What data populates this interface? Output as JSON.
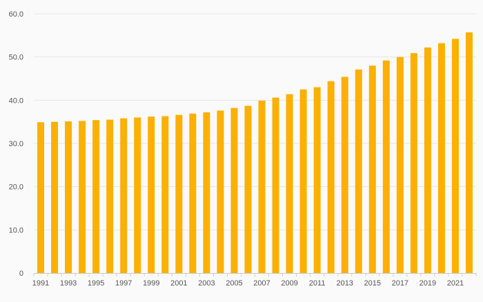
{
  "chart_data": {
    "type": "bar",
    "title": "",
    "xlabel": "",
    "ylabel": "",
    "ylim": [
      0,
      60
    ],
    "y_ticks": [
      0,
      10,
      20,
      30,
      40,
      50,
      60
    ],
    "y_tick_labels": [
      "0",
      "10.0",
      "20.0",
      "30.0",
      "40.0",
      "50.0",
      "60.0"
    ],
    "x_tick_labels": [
      "1991",
      "1993",
      "1995",
      "1997",
      "1999",
      "2001",
      "2003",
      "2005",
      "2007",
      "2009",
      "2011",
      "2013",
      "2015",
      "2017",
      "2019",
      "2021"
    ],
    "grid": true,
    "legend": "none",
    "categories": [
      "1991",
      "1992",
      "1993",
      "1994",
      "1995",
      "1996",
      "1997",
      "1998",
      "1999",
      "2000",
      "2001",
      "2002",
      "2003",
      "2004",
      "2005",
      "2006",
      "2007",
      "2008",
      "2009",
      "2010",
      "2011",
      "2012",
      "2013",
      "2014",
      "2015",
      "2016",
      "2017",
      "2018",
      "2019",
      "2020",
      "2021",
      "2022"
    ],
    "values": [
      34.9,
      35.0,
      35.1,
      35.2,
      35.4,
      35.5,
      35.8,
      36.0,
      36.2,
      36.3,
      36.6,
      36.9,
      37.2,
      37.6,
      38.2,
      38.7,
      39.9,
      40.6,
      41.4,
      42.5,
      43.0,
      44.4,
      45.4,
      47.1,
      48.0,
      49.2,
      50.0,
      50.9,
      52.2,
      53.2,
      54.2,
      55.7
    ],
    "colors": {
      "bar": "#fbb003",
      "grid": "#e6e6e6",
      "axis": "#cccccc",
      "text": "#555555",
      "background": "#fafafa"
    }
  }
}
